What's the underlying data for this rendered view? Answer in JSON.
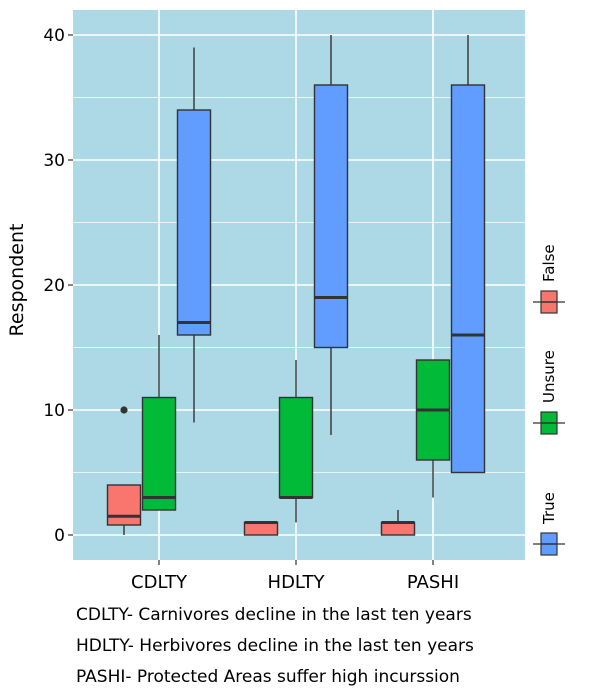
{
  "chart_data": {
    "type": "boxplot",
    "title": "",
    "xlabel": "",
    "ylabel": "Respondent",
    "ylim": [
      -2,
      42
    ],
    "yticks": [
      0,
      10,
      20,
      30,
      40
    ],
    "categories": [
      "CDLTY",
      "HDLTY",
      "PASHI"
    ],
    "series": [
      {
        "name": "False",
        "color": "#F8766D",
        "boxes": [
          {
            "category": "CDLTY",
            "min": 0,
            "q1": 0.8,
            "median": 1.5,
            "q3": 4,
            "max": 4,
            "outliers": [
              10
            ]
          },
          {
            "category": "HDLTY",
            "min": 0,
            "q1": 0,
            "median": 1,
            "q3": 1,
            "max": 1,
            "outliers": []
          },
          {
            "category": "PASHI",
            "min": 0,
            "q1": 0,
            "median": 1,
            "q3": 1,
            "max": 2,
            "outliers": []
          }
        ]
      },
      {
        "name": "Unsure",
        "color": "#00BA38",
        "boxes": [
          {
            "category": "CDLTY",
            "min": 2,
            "q1": 2,
            "median": 3,
            "q3": 11,
            "max": 16,
            "outliers": []
          },
          {
            "category": "HDLTY",
            "min": 1,
            "q1": 3,
            "median": 3,
            "q3": 11,
            "max": 14,
            "outliers": []
          },
          {
            "category": "PASHI",
            "min": 3,
            "q1": 6,
            "median": 10,
            "q3": 14,
            "max": 14,
            "outliers": []
          }
        ]
      },
      {
        "name": "True",
        "color": "#619CFF",
        "boxes": [
          {
            "category": "CDLTY",
            "min": 9,
            "q1": 16,
            "median": 17,
            "q3": 34,
            "max": 39,
            "outliers": []
          },
          {
            "category": "HDLTY",
            "min": 8,
            "q1": 15,
            "median": 19,
            "q3": 36,
            "max": 40,
            "outliers": []
          },
          {
            "category": "PASHI",
            "min": 5,
            "q1": 5,
            "median": 16,
            "q3": 36,
            "max": 40,
            "outliers": []
          }
        ]
      }
    ],
    "panel_color": "#ADD8E6",
    "grid": true,
    "legend": {
      "placement": "right",
      "orientation": "vertical",
      "items": [
        "False",
        "Unsure",
        "True"
      ]
    }
  },
  "notes": [
    "CDLTY- Carnivores decline in the last ten years",
    "HDLTY- Herbivores decline in the last ten years",
    "PASHI- Protected Areas suffer high incurssion"
  ]
}
